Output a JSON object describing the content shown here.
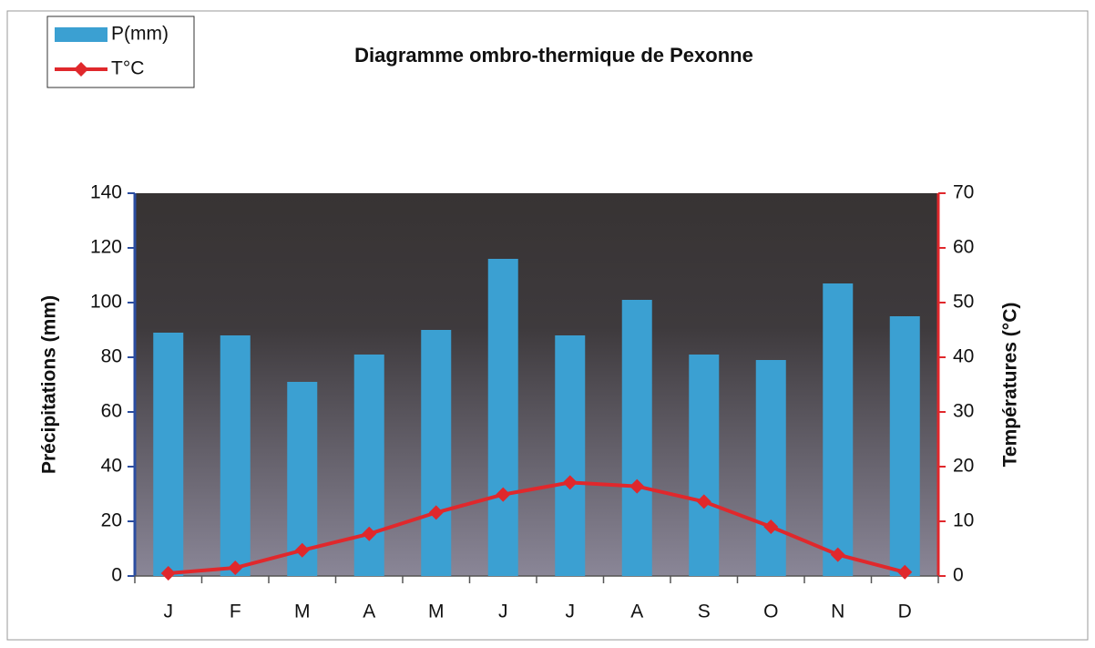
{
  "chart_data": {
    "type": "bar",
    "title": "Diagramme ombro-thermique de   Pexonne",
    "categories": [
      "J",
      "F",
      "M",
      "A",
      "M",
      "J",
      "J",
      "A",
      "S",
      "O",
      "N",
      "D"
    ],
    "series": [
      {
        "name": "P(mm)",
        "type": "bar",
        "color": "#3ba0d2",
        "values": [
          89,
          88,
          71,
          81,
          90,
          116,
          88,
          101,
          81,
          79,
          107,
          95
        ]
      },
      {
        "name": "T°C",
        "type": "line",
        "axis": "y2",
        "color": "#e0282c",
        "values": [
          0.5,
          1.5,
          4.7,
          7.7,
          11.6,
          14.9,
          17.1,
          16.4,
          13.6,
          9,
          3.9,
          0.7
        ]
      }
    ],
    "ylabel": "Précipitations (mm)",
    "y2label": "Températures (°C)",
    "ylim": [
      0,
      140
    ],
    "yticks": [
      0,
      20,
      40,
      60,
      80,
      100,
      120,
      140
    ],
    "y2lim": [
      0,
      70
    ],
    "y2ticks": [
      0,
      10,
      20,
      30,
      40,
      50,
      60,
      70
    ],
    "legend": "top-left"
  }
}
